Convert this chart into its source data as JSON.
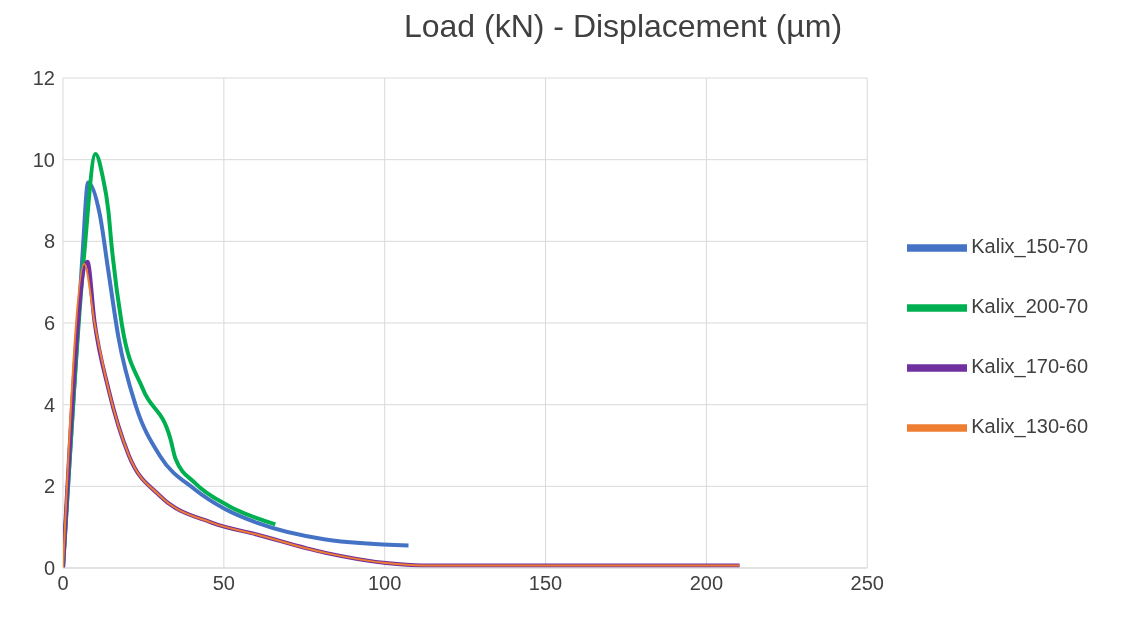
{
  "chart_data": {
    "type": "line",
    "title": "Load (kN) - Displacement (µm)",
    "xlim": [
      0,
      250
    ],
    "xticks": [
      0,
      50,
      100,
      150,
      200,
      250
    ],
    "ylim": [
      0,
      12
    ],
    "yticks": [
      0,
      2,
      4,
      6,
      8,
      10,
      12
    ],
    "grid": true,
    "legend": "right",
    "marker": "none",
    "line_style": "solid",
    "series": [
      {
        "name": "Kalix_150-70",
        "color": "#4472c4",
        "x": [
          0,
          6,
          7.8,
          11.4,
          14.1,
          17.3,
          22.6,
          30.1,
          40.9,
          50.5,
          60.2,
          81.6,
          107.4
        ],
        "values": [
          0,
          7.6,
          9.44,
          8.67,
          7.27,
          5.62,
          3.98,
          2.75,
          1.93,
          1.44,
          1.11,
          0.7,
          0.55
        ]
      },
      {
        "name": "Kalix_200-70",
        "color": "#00b050",
        "x": [
          0,
          6.5,
          10.1,
          12.4,
          14.1,
          15.1,
          18.3,
          24.8,
          33.4,
          35,
          40.9,
          51.5,
          66
        ],
        "values": [
          0,
          7.6,
          10.14,
          9.56,
          8.75,
          7.9,
          5.96,
          4.39,
          3.16,
          2.67,
          2.09,
          1.52,
          1.07
        ]
      },
      {
        "name": "Kalix_170-60",
        "color": "#7030a0",
        "x": [
          0,
          7.6,
          9.8,
          14.1,
          20.5,
          30.1,
          46.2,
          60.2,
          81.6,
          100.4,
          111.6,
          210.3
        ],
        "values": [
          0,
          7.5,
          6.03,
          4.39,
          2.75,
          1.77,
          1.11,
          0.82,
          0.37,
          0.12,
          0.06,
          0.06
        ]
      },
      {
        "name": "Kalix_130-60",
        "color": "#ed7d31",
        "x": [
          0,
          6.6,
          9.8,
          14.1,
          20.5,
          30.1,
          46.2,
          60.2,
          81.6,
          100.4,
          111.6,
          210.3
        ],
        "values": [
          0,
          7.45,
          6.0,
          4.39,
          2.75,
          1.77,
          1.11,
          0.82,
          0.37,
          0.12,
          0.06,
          0.06
        ]
      }
    ]
  }
}
